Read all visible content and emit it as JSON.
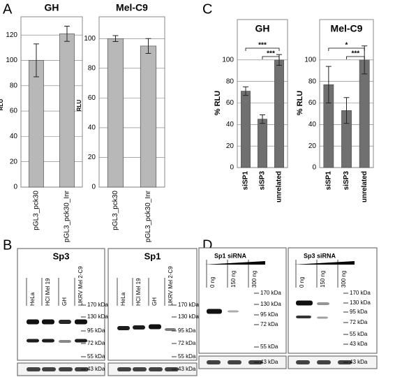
{
  "panel_labels": [
    "A",
    "B",
    "C",
    "D"
  ],
  "chart_data": [
    {
      "type": "bar",
      "title": "GH",
      "ylabel": "RLU",
      "categories": [
        "pGL3_pck30",
        "pGL3_pck30_Inr"
      ],
      "values": [
        100,
        121
      ],
      "errors": [
        13,
        6
      ],
      "color": "#b8b8b8",
      "ylim": [
        0,
        130
      ],
      "yticks": [
        0,
        20,
        40,
        60,
        80,
        100,
        120
      ],
      "grid": true
    },
    {
      "type": "bar",
      "title": "Mel-C9",
      "ylabel": "RLU",
      "categories": [
        "pGL3_pck30",
        "pGL3_pck30_Inr"
      ],
      "values": [
        100,
        95
      ],
      "errors": [
        2,
        5
      ],
      "color": "#b8b8b8",
      "ylim": [
        0,
        110
      ],
      "yticks": [
        0,
        20,
        40,
        60,
        80,
        100
      ],
      "grid": true
    },
    {
      "type": "bar",
      "title": "GH",
      "ylabel": "% RLU",
      "categories": [
        "siSP1",
        "siSP3",
        "unrelated"
      ],
      "values": [
        71,
        45,
        100
      ],
      "errors": [
        4,
        4,
        5
      ],
      "color": "#707070",
      "ylim": [
        0,
        120
      ],
      "yticks": [
        0,
        20,
        40,
        60,
        80,
        100
      ],
      "grid": true,
      "annotations": [
        "***",
        "***"
      ]
    },
    {
      "type": "bar",
      "title": "Mel-C9",
      "ylabel": "% RLU",
      "categories": [
        "siSP1",
        "siSP3",
        "unrelated"
      ],
      "values": [
        77,
        53,
        100
      ],
      "errors": [
        17,
        12,
        13
      ],
      "color": "#707070",
      "ylim": [
        0,
        120
      ],
      "yticks": [
        0,
        20,
        40,
        60,
        80,
        100
      ],
      "grid": true,
      "annotations": [
        "*",
        "***"
      ]
    }
  ],
  "blots": [
    {
      "title": "Sp3",
      "lanes": [
        "HeLa",
        "HCl Mel 19",
        "GH",
        "UKRV Mel 2-C9"
      ],
      "markers": [
        "170 kDa",
        "130 kDa",
        "95 kDa",
        "72 kDa",
        "55 kDa"
      ],
      "loading_marker": "43 kDa"
    },
    {
      "title": "Sp1",
      "lanes": [
        "HeLa",
        "HCl Mel 19",
        "GH",
        "UKRV Mel 2-C9"
      ],
      "markers": [
        "170 kDa",
        "130 kDa",
        "95 kDa",
        "72 kDa",
        "55 kDa"
      ],
      "loading_marker": "43 kDa"
    },
    {
      "title": "Sp1 siRNA",
      "lanes": [
        "0 ng",
        "150 ng",
        "300 ng"
      ],
      "markers": [
        "170 kDa",
        "130 kDa",
        "95 kDa",
        "72 kDa",
        "55 kDa"
      ],
      "loading_marker": "43 kDa"
    },
    {
      "title": "Sp3 siRNA",
      "lanes": [
        "0 ng",
        "150 ng",
        "300 ng"
      ],
      "markers": [
        "170 kDa",
        "130 kDa",
        "95 kDa",
        "72 kDa",
        "55 kDa",
        "43 kDa"
      ],
      "loading_marker": "43 kDa"
    }
  ]
}
